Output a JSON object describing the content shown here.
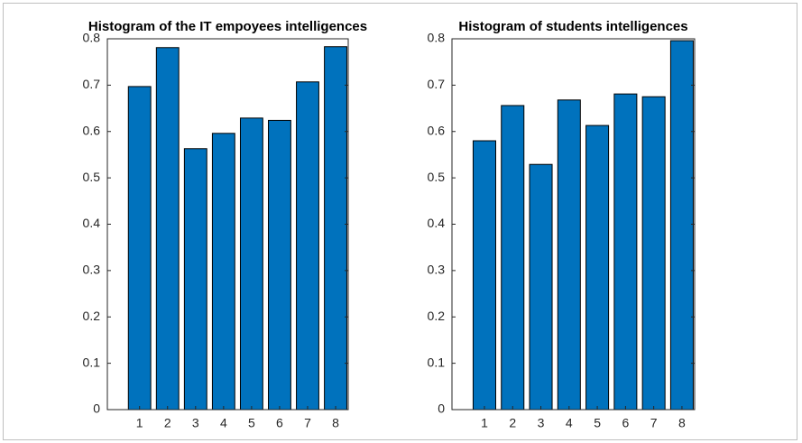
{
  "chart_data": [
    {
      "type": "bar",
      "title": "Histogram of the IT empoyees intelligences",
      "categories": [
        "1",
        "2",
        "3",
        "4",
        "5",
        "6",
        "7",
        "8"
      ],
      "values": [
        0.697,
        0.781,
        0.563,
        0.596,
        0.629,
        0.624,
        0.707,
        0.783
      ],
      "color": "#0072bd",
      "ylim": [
        0,
        0.8
      ],
      "yticks": [
        0,
        0.1,
        0.2,
        0.3,
        0.4,
        0.5,
        0.6,
        0.7,
        0.8
      ]
    },
    {
      "type": "bar",
      "title": "Histogram of students intelligences",
      "categories": [
        "1",
        "2",
        "3",
        "4",
        "5",
        "6",
        "7",
        "8"
      ],
      "values": [
        0.58,
        0.656,
        0.529,
        0.668,
        0.613,
        0.681,
        0.675,
        0.796
      ],
      "color": "#0072bd",
      "ylim": [
        0,
        0.8
      ],
      "yticks": [
        0,
        0.1,
        0.2,
        0.3,
        0.4,
        0.5,
        0.6,
        0.7,
        0.8
      ]
    }
  ]
}
